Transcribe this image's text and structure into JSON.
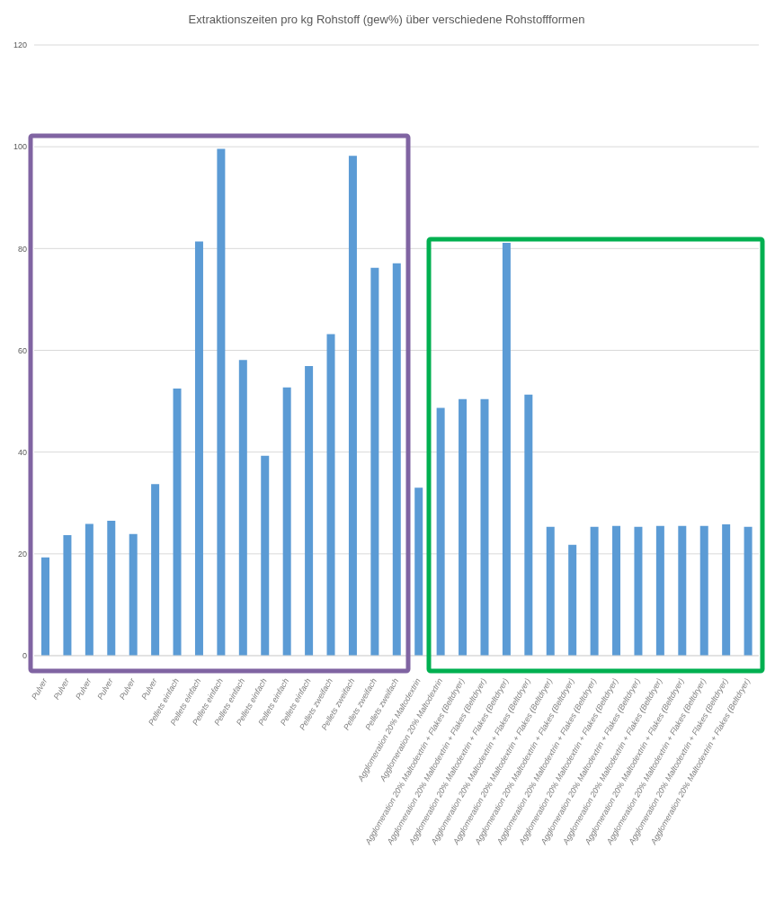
{
  "chart_data": {
    "type": "bar",
    "title": "Extraktionszeiten pro kg Rohstoff (gew%) über verschiedene Rohstoffformen",
    "categories": [
      "Pulver",
      "Pulver",
      "Pulver",
      "Pulver",
      "Pulver",
      "Pulver",
      "Pellets einfach",
      "Pellets einfach",
      "Pellets einfach",
      "Pellets einfach",
      "Pellets einfach",
      "Pellets einfach",
      "Pellets einfach",
      "Pellets zweifach",
      "Pellets zweifach",
      "Pellets zweifach",
      "Pellets zweifach",
      "Agglomeration 20% Maltodextrin",
      "Agglomeration 20% Maltodextrin",
      "Agglomeration 20% Maltodextrin + Flakes (Beltdryer)",
      "Agglomeration 20% Maltodextrin + Flakes (Beltdryer)",
      "Agglomeration 20% Maltodextrin + Flakes (Beltdryer)",
      "Agglomeration 20% Maltodextrin + Flakes (Beltdryer)",
      "Agglomeration 20% Maltodextrin + Flakes (Beltdryer)",
      "Agglomeration 20% Maltodextrin + Flakes (Beltdryer)",
      "Agglomeration 20% Maltodextrin + Flakes (Beltdryer)",
      "Agglomeration 20% Maltodextrin + Flakes (Beltdryer)",
      "Agglomeration 20% Maltodextrin + Flakes (Beltdryer)",
      "Agglomeration 20% Maltodextrin + Flakes (Beltdryer)",
      "Agglomeration 20% Maltodextrin + Flakes (Beltdryer)",
      "Agglomeration 20% Maltodextrin + Flakes (Beltdryer)",
      "Agglomeration 20% Maltodextrin + Flakes (Beltdryer)",
      "Agglomeration 20% Maltodextrin + Flakes (Beltdryer)"
    ],
    "values": [
      19.3,
      23.7,
      25.9,
      26.5,
      23.9,
      33.7,
      52.5,
      81.4,
      99.6,
      58.1,
      39.3,
      52.7,
      56.9,
      63.2,
      98.2,
      76.2,
      77.1,
      33.0,
      48.7,
      50.4,
      50.4,
      81.1,
      51.3,
      25.3,
      21.8,
      25.3,
      25.5,
      25.3,
      25.5,
      25.5,
      25.5,
      25.8,
      25.3
    ],
    "color": "#5b9bd5",
    "ylim": [
      0,
      120
    ],
    "yticks": [
      0,
      20,
      40,
      60,
      80,
      100,
      120
    ],
    "grid": "y"
  }
}
